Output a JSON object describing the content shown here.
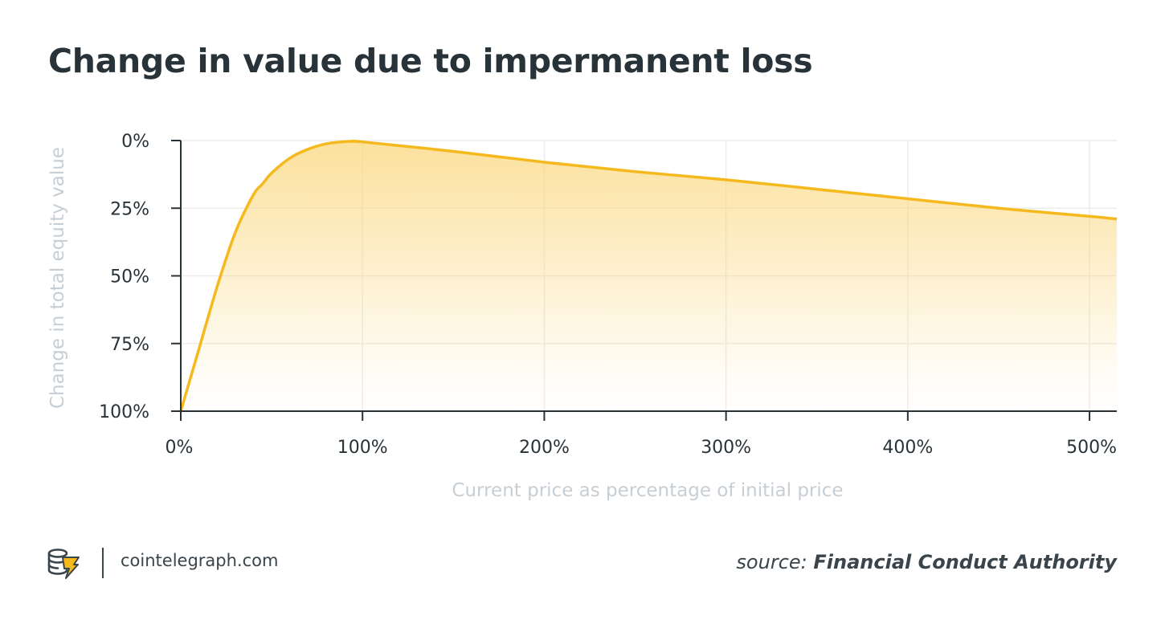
{
  "title": "Change in value due to impermanent loss",
  "chart_data": {
    "type": "area",
    "xlabel": "Current price as percentage of initial price",
    "ylabel": "Change in total equity value",
    "xlim": [
      0,
      515
    ],
    "ylim": [
      0,
      100
    ],
    "y_inverted": true,
    "x_ticks": [
      0,
      100,
      200,
      300,
      400,
      500
    ],
    "x_tick_labels": [
      "0%",
      "100%",
      "200%",
      "300%",
      "400%",
      "500%"
    ],
    "y_ticks": [
      0,
      25,
      50,
      75,
      100
    ],
    "y_tick_labels": [
      "0%",
      "25%",
      "50%",
      "75%",
      "100%"
    ],
    "grid": true,
    "series": [
      {
        "x": [
          0,
          10,
          20,
          30,
          40,
          45,
          50,
          60,
          70,
          80,
          90,
          95,
          100,
          150,
          200,
          250,
          300,
          350,
          400,
          450,
          500,
          515
        ],
        "y": [
          100,
          77,
          54,
          34,
          20,
          16,
          12,
          6.5,
          3.2,
          1.2,
          0.4,
          0.3,
          0.5,
          4,
          8,
          11.5,
          14.5,
          18,
          21.5,
          25,
          28,
          29
        ]
      }
    ],
    "line_color": "#f5b91e",
    "fill_color": "#fbd77c"
  },
  "footer": {
    "logo_icon": "cointelegraph-logo-icon",
    "site": "cointelegraph.com",
    "source_prefix": "source:",
    "source_name": "Financial Conduct Authority"
  }
}
